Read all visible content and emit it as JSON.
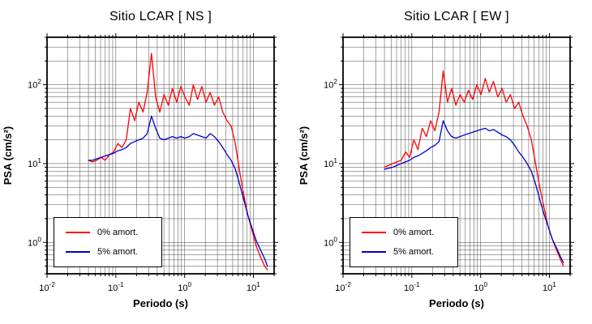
{
  "chart_data": [
    {
      "type": "line",
      "title": "Sitio LCAR [ NS ]",
      "xlabel": "Periodo (s)",
      "ylabel": "PSA (cm/s²)",
      "xscale": "log",
      "yscale": "log",
      "xlim": [
        0.01,
        20
      ],
      "ylim": [
        0.4,
        400
      ],
      "grid": "log minor, both axes",
      "legend_position": "lower left",
      "xticks": [
        {
          "value": 0.01,
          "label": "10^-2"
        },
        {
          "value": 0.1,
          "label": "10^-1"
        },
        {
          "value": 1,
          "label": "10^0"
        },
        {
          "value": 10,
          "label": "10^1"
        }
      ],
      "yticks": [
        {
          "value": 1,
          "label": "10^0"
        },
        {
          "value": 10,
          "label": "10^1"
        },
        {
          "value": 100,
          "label": "10^2"
        }
      ],
      "x": [
        0.04,
        0.046,
        0.053,
        0.061,
        0.07,
        0.081,
        0.093,
        0.107,
        0.123,
        0.142,
        0.163,
        0.188,
        0.216,
        0.249,
        0.286,
        0.33,
        0.379,
        0.436,
        0.502,
        0.578,
        0.665,
        0.765,
        0.881,
        1.01,
        1.17,
        1.34,
        1.54,
        1.78,
        2.05,
        2.35,
        2.71,
        3.12,
        3.59,
        4.13,
        4.75,
        5.47,
        6.29,
        7.24,
        8.33,
        9.58,
        11.0,
        12.7,
        14.6,
        16.0
      ],
      "series": [
        {
          "name": "0% amort.",
          "color": "#ff0000",
          "values": [
            11,
            10.5,
            11,
            12,
            11,
            13,
            14,
            18,
            16,
            20,
            50,
            35,
            60,
            45,
            80,
            250,
            70,
            45,
            75,
            55,
            90,
            60,
            95,
            70,
            55,
            100,
            65,
            95,
            60,
            80,
            55,
            70,
            45,
            35,
            30,
            18,
            8,
            4,
            2.2,
            1.4,
            0.9,
            0.65,
            0.5,
            0.45
          ]
        },
        {
          "name": "5% amort.",
          "color": "#0000cd",
          "values": [
            11,
            11,
            11.5,
            12,
            12.5,
            13,
            13.5,
            14.5,
            15,
            16,
            18,
            19,
            20,
            21,
            24,
            40,
            28,
            21,
            20,
            21,
            22,
            21,
            22,
            21,
            22,
            24,
            23,
            22,
            21,
            24,
            22,
            19,
            16,
            13,
            11,
            8.5,
            5.5,
            3.5,
            2.2,
            1.5,
            1.05,
            0.8,
            0.62,
            0.5
          ]
        }
      ]
    },
    {
      "type": "line",
      "title": "Sitio LCAR [ EW ]",
      "xlabel": "Periodo (s)",
      "ylabel": "PSA (cm/s²)",
      "xscale": "log",
      "yscale": "log",
      "xlim": [
        0.01,
        20
      ],
      "ylim": [
        0.4,
        400
      ],
      "grid": "log minor, both axes",
      "legend_position": "lower left",
      "xticks": [
        {
          "value": 0.01,
          "label": "10^-2"
        },
        {
          "value": 0.1,
          "label": "10^-1"
        },
        {
          "value": 1,
          "label": "10^0"
        },
        {
          "value": 10,
          "label": "10^1"
        }
      ],
      "yticks": [
        {
          "value": 1,
          "label": "10^0"
        },
        {
          "value": 10,
          "label": "10^1"
        },
        {
          "value": 100,
          "label": "10^2"
        }
      ],
      "x": [
        0.04,
        0.046,
        0.053,
        0.061,
        0.07,
        0.081,
        0.093,
        0.107,
        0.123,
        0.142,
        0.163,
        0.188,
        0.216,
        0.249,
        0.286,
        0.33,
        0.379,
        0.436,
        0.502,
        0.578,
        0.665,
        0.765,
        0.881,
        1.01,
        1.17,
        1.34,
        1.54,
        1.78,
        2.05,
        2.35,
        2.71,
        3.12,
        3.59,
        4.13,
        4.75,
        5.47,
        6.29,
        7.24,
        8.33,
        9.58,
        11.0,
        12.7,
        14.6,
        16.0
      ],
      "series": [
        {
          "name": "0% amort.",
          "color": "#ff0000",
          "values": [
            9,
            9.5,
            10,
            10.5,
            11,
            14,
            12,
            20,
            15,
            28,
            22,
            35,
            26,
            45,
            150,
            60,
            90,
            55,
            75,
            60,
            85,
            65,
            100,
            75,
            120,
            80,
            110,
            70,
            90,
            60,
            75,
            50,
            60,
            40,
            30,
            20,
            10,
            5,
            2.8,
            1.6,
            1.1,
            0.8,
            0.6,
            0.5
          ]
        },
        {
          "name": "5% amort.",
          "color": "#0000cd",
          "values": [
            8.5,
            8.7,
            9,
            9.5,
            10,
            10.5,
            11,
            12,
            12.5,
            13.5,
            14.5,
            16,
            17,
            19,
            35,
            26,
            22,
            21,
            22,
            23,
            24,
            25,
            26,
            27,
            28,
            26,
            27,
            25,
            23,
            22,
            20,
            17,
            14,
            12,
            10,
            8,
            5.5,
            3.5,
            2.3,
            1.6,
            1.1,
            0.85,
            0.65,
            0.55
          ]
        }
      ]
    }
  ]
}
